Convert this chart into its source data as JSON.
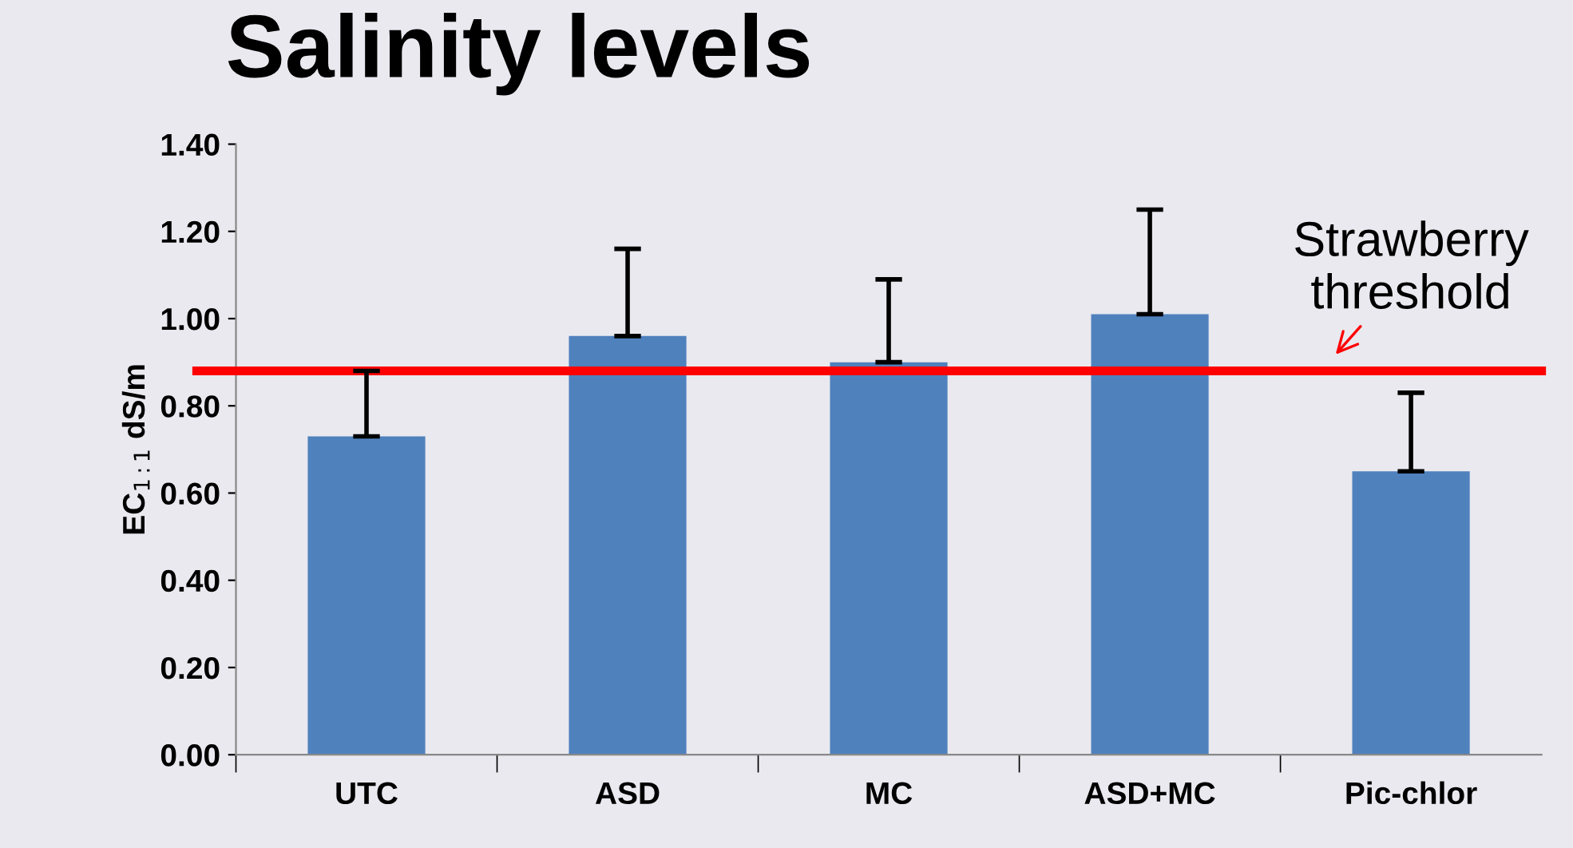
{
  "chart_data": {
    "type": "bar",
    "title": "Salinity levels",
    "ylabel": "EC$_{1:1}$ dS/m",
    "categories": [
      "UTC",
      "ASD",
      "MC",
      "ASD+MC",
      "Pic-chlor"
    ],
    "values": [
      0.73,
      0.96,
      0.9,
      1.01,
      0.65
    ],
    "errors": [
      [
        0.73,
        0.88
      ],
      [
        0.96,
        1.16
      ],
      [
        0.9,
        1.09
      ],
      [
        1.01,
        1.25
      ],
      [
        0.65,
        0.83
      ]
    ],
    "color": "#4f81bd",
    "ylim": [
      0,
      1.4
    ],
    "yticks": [
      {
        "value": 0,
        "label": "0.00"
      },
      {
        "value": 0.2,
        "label": "0.20"
      },
      {
        "value": 0.4,
        "label": "0.40"
      },
      {
        "value": 0.6,
        "label": "0.60"
      },
      {
        "value": 0.8,
        "label": "0.80"
      },
      {
        "value": 1.0,
        "label": "1.00"
      },
      {
        "value": 1.2,
        "label": "1.20"
      },
      {
        "value": 1.4,
        "label": "1.40"
      }
    ],
    "ref_lines": [
      {
        "axis": "y",
        "value": 0.88,
        "label": "Strawberry\nthreshold",
        "color": "#ff0000",
        "line_style": "solid"
      }
    ],
    "grid": false,
    "legend": false
  }
}
